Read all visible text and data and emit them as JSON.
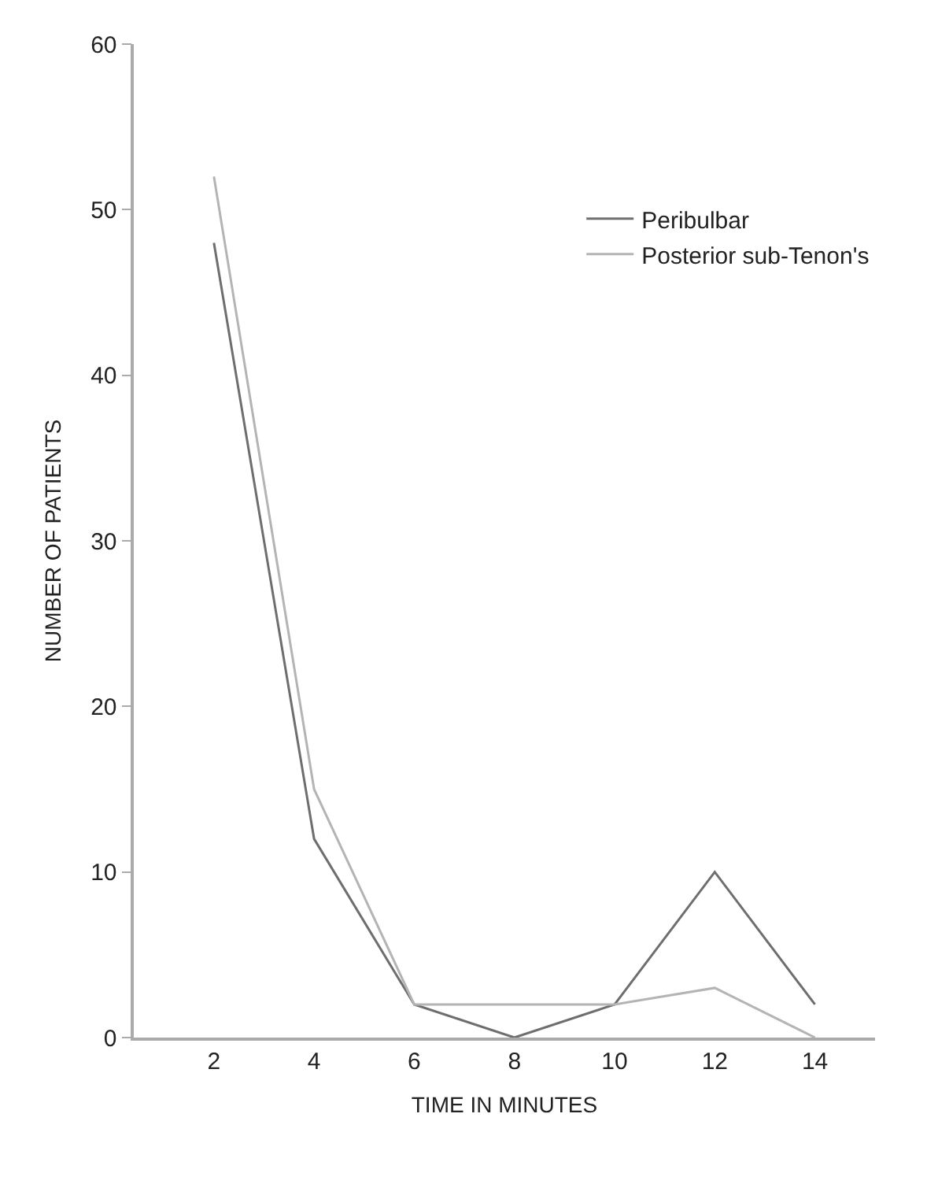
{
  "chart_data": {
    "type": "line",
    "xlabel": "TIME IN MINUTES",
    "ylabel": "NUMBER OF PATIENTS",
    "categories": [
      "2",
      "4",
      "6",
      "8",
      "10",
      "12",
      "14"
    ],
    "series": [
      {
        "name": "Peribulbar",
        "color": "#6e6e6e",
        "values": [
          48,
          12,
          2,
          0,
          2,
          10,
          2
        ]
      },
      {
        "name": "Posterior sub-Tenon's",
        "color": "#b4b4b4",
        "values": [
          52,
          15,
          2,
          2,
          2,
          3,
          0
        ]
      }
    ],
    "ylim": [
      0,
      60
    ],
    "yticks": [
      0,
      10,
      20,
      30,
      40,
      50,
      60
    ],
    "legend": "top right",
    "marker": "none",
    "line_style": "solid"
  }
}
